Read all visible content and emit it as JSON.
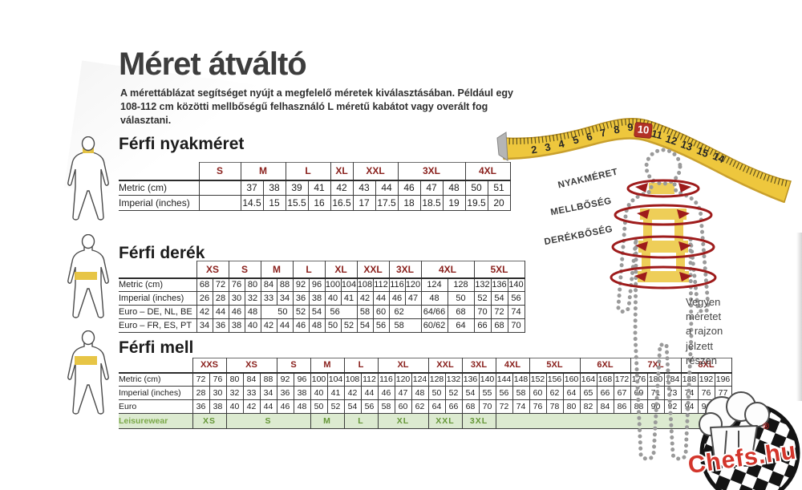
{
  "page": {
    "title": "Méret átváltó",
    "subtitle": "A mérettáblázat segítséget nyújt a megfelelő méretek kiválasztásában. Például egy 108-112 cm közötti mellbőségű felhasználó L méretű kabátot vagy overált fog választani."
  },
  "colors": {
    "size_header_red": "#8a211d",
    "leisure_green_text": "#649636",
    "leisure_green_bg": "#dcead0",
    "tape_yellow": "#eec73d",
    "tape_highlight_red": "#b23226",
    "band_yellow": "#eece58",
    "arrow_red": "#9e1b1b",
    "logo_red": "#d3352b"
  },
  "tables": [
    {
      "title": "Férfi nyakméret",
      "sizes": [
        {
          "label": "S",
          "span": 1
        },
        {
          "label": "M",
          "span": 2
        },
        {
          "label": "L",
          "span": 2
        },
        {
          "label": "XL",
          "span": 1
        },
        {
          "label": "XXL",
          "span": 2
        },
        {
          "label": "3XL",
          "span": 3
        },
        {
          "label": "4XL",
          "span": 2
        }
      ],
      "rows": [
        {
          "label": "Metric  (cm)",
          "cells": [
            "",
            "37",
            "38",
            "39",
            "41",
            "42",
            "43",
            "44",
            "46",
            "47",
            "48",
            "50",
            "51"
          ]
        },
        {
          "label": "Imperial (inches)",
          "cells": [
            "",
            "14.5",
            "15",
            "15.5",
            "16",
            "16.5",
            "17",
            "17.5",
            "18",
            "18.5",
            "19",
            "19.5",
            "20"
          ]
        }
      ]
    },
    {
      "title": "Férfi derék",
      "sizes": [
        {
          "label": "XS",
          "span": 2
        },
        {
          "label": "S",
          "span": 2
        },
        {
          "label": "M",
          "span": 2
        },
        {
          "label": "L",
          "span": 2
        },
        {
          "label": "XL",
          "span": 2
        },
        {
          "label": "XXL",
          "span": 2
        },
        {
          "label": "3XL",
          "span": 2
        },
        {
          "label": "4XL",
          "span": 2
        },
        {
          "label": "5XL",
          "span": 3
        }
      ],
      "rows": [
        {
          "label": "Metric  (cm)",
          "cells": [
            "68",
            "72",
            "76",
            "80",
            "84",
            "88",
            "92",
            "96",
            "100",
            "104",
            "108",
            "112",
            "116",
            "120",
            "124",
            "128",
            "132",
            "136",
            "140"
          ]
        },
        {
          "label": "Imperial (inches)",
          "cells": [
            "26",
            "28",
            "30",
            "32",
            "33",
            "34",
            "36",
            "38",
            "40",
            "41",
            "42",
            "44",
            "46",
            "47",
            "48",
            "50",
            "52",
            "54",
            "56"
          ]
        },
        {
          "label": "Euro – DE, NL, BE",
          "cells": [
            "42",
            "44",
            "46",
            "48",
            {
              "v": "50",
              "span": 2,
              "align": "right"
            },
            "52",
            "54",
            {
              "v": "56",
              "span": 2,
              "align": "left"
            },
            "58",
            "60",
            {
              "v": "62",
              "span": 2,
              "align": "left"
            },
            "64/66",
            "68",
            "70",
            "72",
            "74"
          ]
        },
        {
          "label": "Euro – FR, ES, PT",
          "cells": [
            "34",
            "36",
            "38",
            "40",
            "42",
            "44",
            "46",
            "48",
            "50",
            "52",
            "54",
            "56",
            {
              "v": "58",
              "span": 2,
              "align": "left"
            },
            "60/62",
            "64",
            "66",
            "68",
            "70"
          ]
        }
      ]
    },
    {
      "title": "Férfi mell",
      "sizes": [
        {
          "label": "XXS",
          "span": 2
        },
        {
          "label": "XS",
          "span": 3
        },
        {
          "label": "S",
          "span": 2
        },
        {
          "label": "M",
          "span": 2
        },
        {
          "label": "L",
          "span": 2
        },
        {
          "label": "XL",
          "span": 3
        },
        {
          "label": "XXL",
          "span": 2
        },
        {
          "label": "3XL",
          "span": 2
        },
        {
          "label": "4XL",
          "span": 2
        },
        {
          "label": "5XL",
          "span": 3
        },
        {
          "label": "6XL",
          "span": 3
        },
        {
          "label": "7XL",
          "span": 3
        },
        {
          "label": "8XL",
          "span": 3
        }
      ],
      "rows": [
        {
          "label": "Metric  (cm)",
          "cells": [
            "72",
            "76",
            "80",
            "84",
            "88",
            "92",
            "96",
            "100",
            "104",
            "108",
            "112",
            "116",
            "120",
            "124",
            "128",
            "132",
            "136",
            "140",
            "144",
            "148",
            "152",
            "156",
            "160",
            "164",
            "168",
            "172",
            "176",
            "180",
            "184",
            "188",
            "192",
            "196"
          ]
        },
        {
          "label": "Imperial (inches)",
          "cells": [
            "28",
            "30",
            "32",
            "33",
            "34",
            "36",
            "38",
            "40",
            "41",
            "42",
            "44",
            "46",
            "47",
            "48",
            "50",
            "52",
            "54",
            "55",
            "56",
            "58",
            "60",
            "62",
            "64",
            "65",
            "66",
            "67",
            "69",
            "71",
            "73",
            "74",
            "76",
            "77"
          ]
        },
        {
          "label": "Euro",
          "cells": [
            "36",
            "38",
            "40",
            "42",
            "44",
            "46",
            "48",
            "50",
            "52",
            "54",
            "56",
            "58",
            "60",
            "62",
            "64",
            "66",
            "68",
            "70",
            "72",
            "74",
            "76",
            "78",
            "80",
            "82",
            "84",
            "86",
            "88",
            "90",
            "92",
            "94",
            "96",
            ""
          ]
        }
      ],
      "leisure": {
        "label": "Leisurewear",
        "cells": [
          {
            "label": "XS",
            "span": 2
          },
          {
            "label": "S",
            "span": 5
          },
          {
            "label": "M",
            "span": 2
          },
          {
            "label": "L",
            "span": 2
          },
          {
            "label": "XL",
            "span": 3
          },
          {
            "label": "XXL",
            "span": 2
          },
          {
            "label": "3XL",
            "span": 2
          },
          {
            "label": "",
            "span": 14
          }
        ]
      }
    }
  ],
  "diagram": {
    "measure_labels": [
      "NYAKMÉRET",
      "MELLBŐSÉG",
      "DERÉKBŐSÉG"
    ],
    "note": "Vegyen\nméretet\na rajzon\njelzett\nrészen",
    "tape_numbers": [
      "2",
      "3",
      "4",
      "5",
      "6",
      "7",
      "8",
      "9",
      "10",
      "11",
      "12",
      "13",
      "15",
      "14"
    ],
    "tape_highlighted": "10"
  },
  "logo": {
    "text": "Chefs.hu",
    "registered": "®"
  }
}
